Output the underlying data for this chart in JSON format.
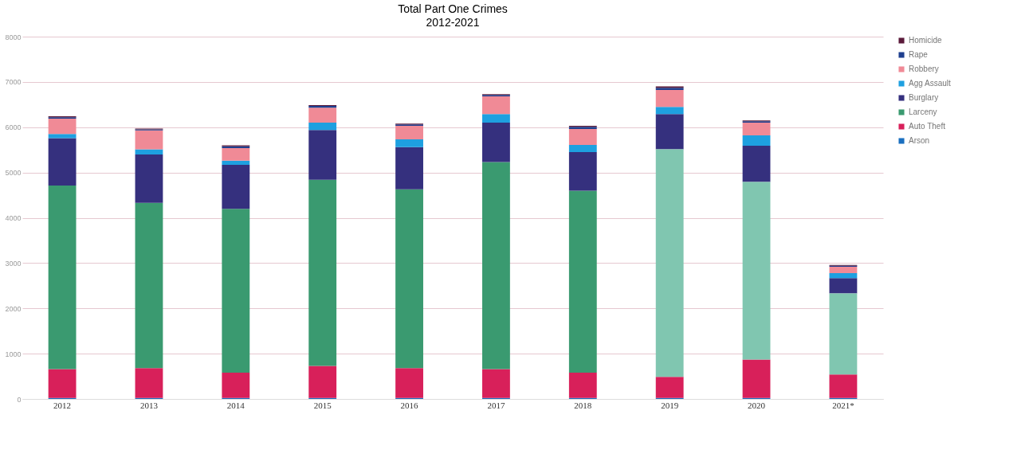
{
  "chart_data": {
    "type": "bar",
    "title": "Total Part One Crimes",
    "subtitle": "2012-2021",
    "stacked": true,
    "categories": [
      "2012",
      "2013",
      "2014",
      "2015",
      "2016",
      "2017",
      "2018",
      "2019",
      "2020",
      "2021*"
    ],
    "series": [
      {
        "name": "Arson",
        "color": "#1a6fc0",
        "values": [
          20,
          20,
          20,
          20,
          20,
          20,
          20,
          20,
          20,
          20
        ]
      },
      {
        "name": "Auto Theft",
        "color": "#d8205a",
        "values": [
          640,
          660,
          560,
          710,
          660,
          640,
          560,
          470,
          850,
          520
        ]
      },
      {
        "name": "Larceny",
        "color": "#3a9a70",
        "colors": [
          "#3a9a70",
          "#3a9a70",
          "#3a9a70",
          "#3a9a70",
          "#3a9a70",
          "#3a9a70",
          "#3a9a70",
          "#80c6b0",
          "#80c6b0",
          "#80c6b0"
        ],
        "values": [
          4050,
          3650,
          3620,
          4110,
          3950,
          4570,
          4020,
          5020,
          3920,
          1790
        ]
      },
      {
        "name": "Burglary",
        "color": "#35307e",
        "values": [
          1050,
          1070,
          970,
          1100,
          930,
          870,
          850,
          780,
          800,
          340
        ]
      },
      {
        "name": "Agg Assault",
        "color": "#1ea0e0",
        "values": [
          90,
          110,
          90,
          160,
          170,
          190,
          160,
          160,
          230,
          110
        ]
      },
      {
        "name": "Robbery",
        "color": "#f08a96",
        "values": [
          340,
          420,
          280,
          330,
          300,
          390,
          350,
          370,
          280,
          140
        ]
      },
      {
        "name": "Rape",
        "color": "#1f3f8f",
        "values": [
          30,
          20,
          40,
          40,
          30,
          30,
          50,
          50,
          30,
          20
        ]
      },
      {
        "name": "Homicide",
        "color": "#5a1a3a",
        "values": [
          20,
          20,
          20,
          20,
          20,
          20,
          20,
          30,
          20,
          20
        ]
      }
    ],
    "ylim": [
      0,
      8000
    ],
    "yticks": [
      0,
      1000,
      2000,
      3000,
      4000,
      5000,
      6000,
      7000,
      8000
    ],
    "grid": "y",
    "legend": "right"
  }
}
